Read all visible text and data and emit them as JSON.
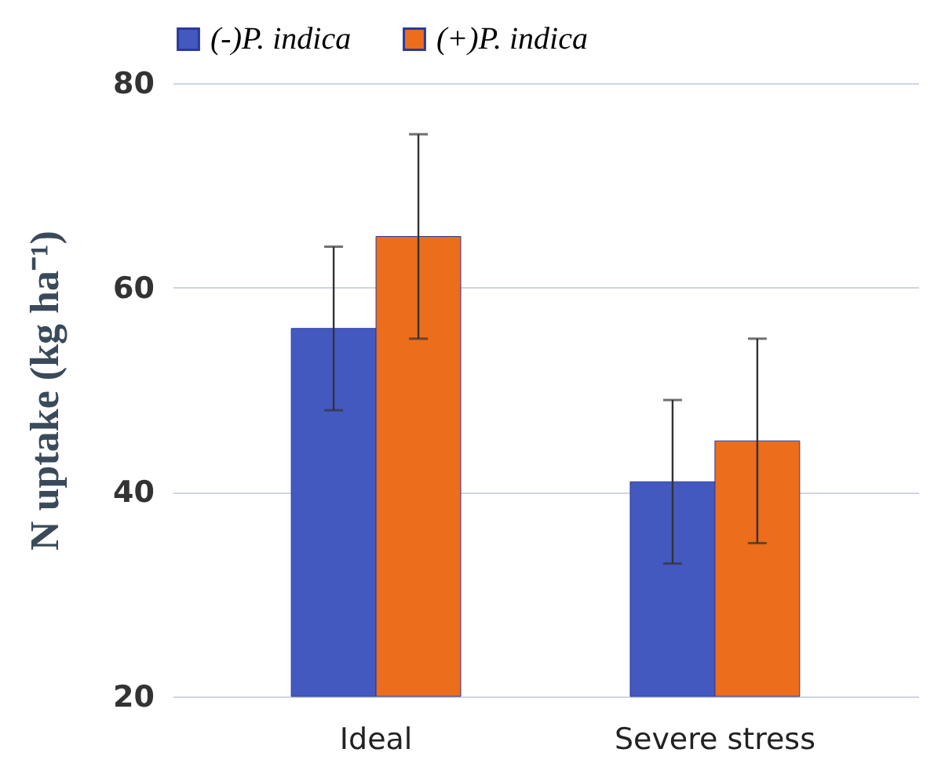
{
  "chart_data": {
    "type": "bar",
    "ylabel": "N uptake (kg ha⁻¹)",
    "categories": [
      "Ideal",
      "Severe stress"
    ],
    "series": [
      {
        "name": "(-)P. indica",
        "color": "#4459c0",
        "values": [
          56,
          41
        ],
        "errors": [
          8,
          8
        ]
      },
      {
        "name": "(+)P. indica",
        "color": "#ec6d1c",
        "values": [
          65,
          45
        ],
        "errors": [
          10,
          10
        ]
      }
    ],
    "ylim": [
      20,
      80
    ],
    "yticks": [
      20,
      40,
      60,
      80
    ],
    "grid": "y",
    "legend": "top"
  }
}
